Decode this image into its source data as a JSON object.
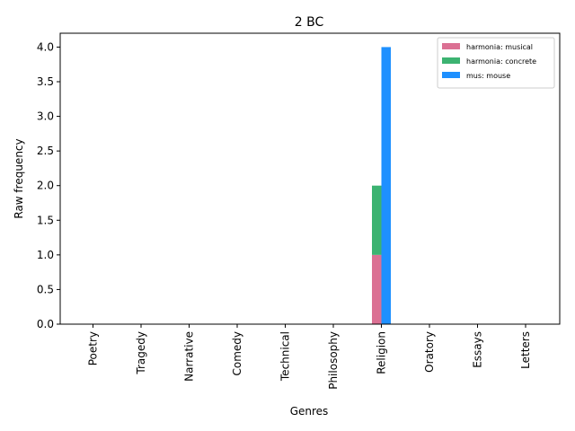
{
  "chart_data": {
    "type": "bar",
    "title": "2 BC",
    "xlabel": "Genres",
    "ylabel": "Raw frequency",
    "ylim": [
      0,
      4.2
    ],
    "yticks": [
      0.0,
      0.5,
      1.0,
      1.5,
      2.0,
      2.5,
      3.0,
      3.5,
      4.0
    ],
    "categories": [
      "Poetry",
      "Tragedy",
      "Narrative",
      "Comedy",
      "Technical",
      "Philosophy",
      "Religion",
      "Oratory",
      "Essays",
      "Letters"
    ],
    "series": [
      {
        "name": "harmonia: musical",
        "color": "#db7093",
        "stack": "harmonia",
        "values": [
          0,
          0,
          0,
          0,
          0,
          0,
          1,
          0,
          0,
          0
        ]
      },
      {
        "name": "harmonia: concrete",
        "color": "#3cb371",
        "stack": "harmonia",
        "values": [
          0,
          0,
          0,
          0,
          0,
          0,
          1,
          0,
          0,
          0
        ]
      },
      {
        "name": "mus: mouse",
        "color": "#1e90ff",
        "stack": "mus",
        "values": [
          0,
          0,
          0,
          0,
          0,
          0,
          4,
          0,
          0,
          0
        ]
      }
    ],
    "grid": false,
    "legend_position": "top-right"
  }
}
